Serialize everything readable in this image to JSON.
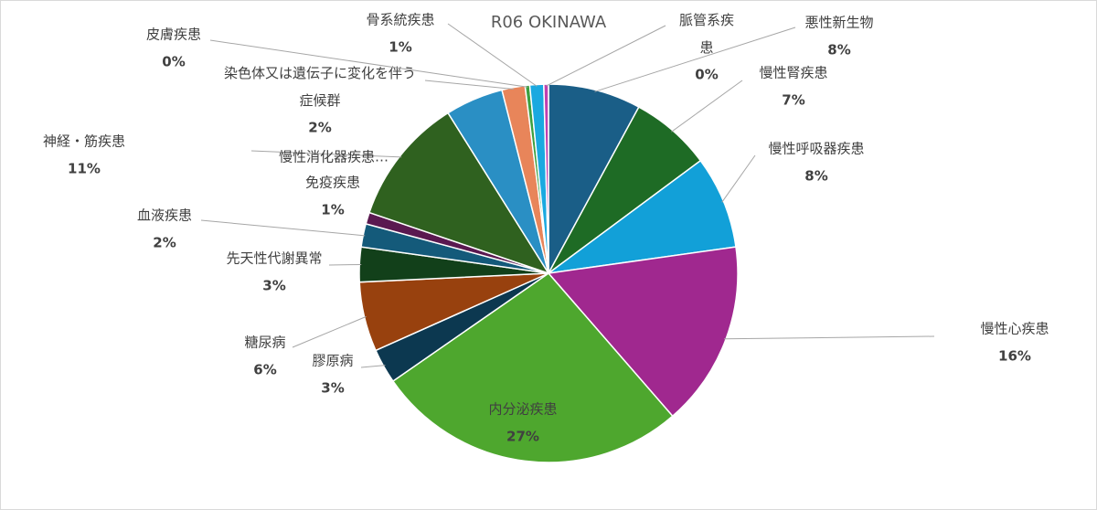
{
  "chart_data": {
    "type": "pie",
    "title": "R06 OKINAWA",
    "categories": [
      "悪性新生物",
      "慢性腎疾患",
      "慢性呼吸器疾患",
      "慢性心疾患",
      "内分泌疾患",
      "膠原病",
      "糖尿病",
      "先天性代謝異常",
      "血液疾患",
      "免疫疾患",
      "神経・筋疾患",
      "慢性消化器疾患…",
      "染色体又は遺伝子に変化を伴う症候群",
      "皮膚疾患",
      "骨系統疾患",
      "脈管系疾患"
    ],
    "values": [
      8,
      7,
      8,
      16,
      27,
      3,
      6,
      3,
      2,
      1,
      11,
      5,
      2,
      0.4,
      1.2,
      0.4
    ],
    "value_labels": [
      "8%",
      "7%",
      "8%",
      "16%",
      "27%",
      "3%",
      "6%",
      "3%",
      "2%",
      "1%",
      "11%",
      null,
      "2%",
      "0%",
      "1%",
      "0%"
    ],
    "colors": [
      "#1a5e87",
      "#1e6b25",
      "#12a0d8",
      "#a0288f",
      "#4ea72e",
      "#0c3850",
      "#98410e",
      "#12401a",
      "#145a7a",
      "#5a1950",
      "#2f611f",
      "#2a8fc4",
      "#e8855a",
      "#3ca040",
      "#1aa9e0",
      "#c040b0"
    ]
  }
}
